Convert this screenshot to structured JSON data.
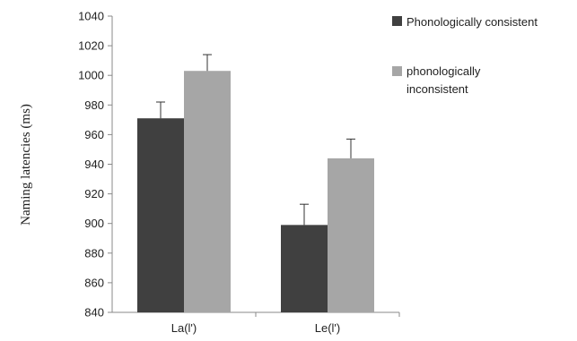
{
  "chart_data": {
    "type": "bar",
    "title": "",
    "xlabel": "",
    "ylabel": "Naming latencies (ms)",
    "ylim": [
      840,
      1040
    ],
    "yticks": [
      840,
      860,
      880,
      900,
      920,
      940,
      960,
      980,
      1000,
      1020,
      1040
    ],
    "categories": [
      "La(l')",
      "Le(l')"
    ],
    "grid": false,
    "legend_position": "top-right",
    "series": [
      {
        "name": "Phonologically consistent",
        "color": "#404040",
        "values": [
          971,
          899
        ],
        "errors": [
          11,
          14
        ]
      },
      {
        "name": "phonologically inconsistent",
        "legend_lines": [
          "phonologically",
          "inconsistent"
        ],
        "color": "#a6a6a6",
        "values": [
          1003,
          944
        ],
        "errors": [
          11,
          13
        ]
      }
    ]
  }
}
